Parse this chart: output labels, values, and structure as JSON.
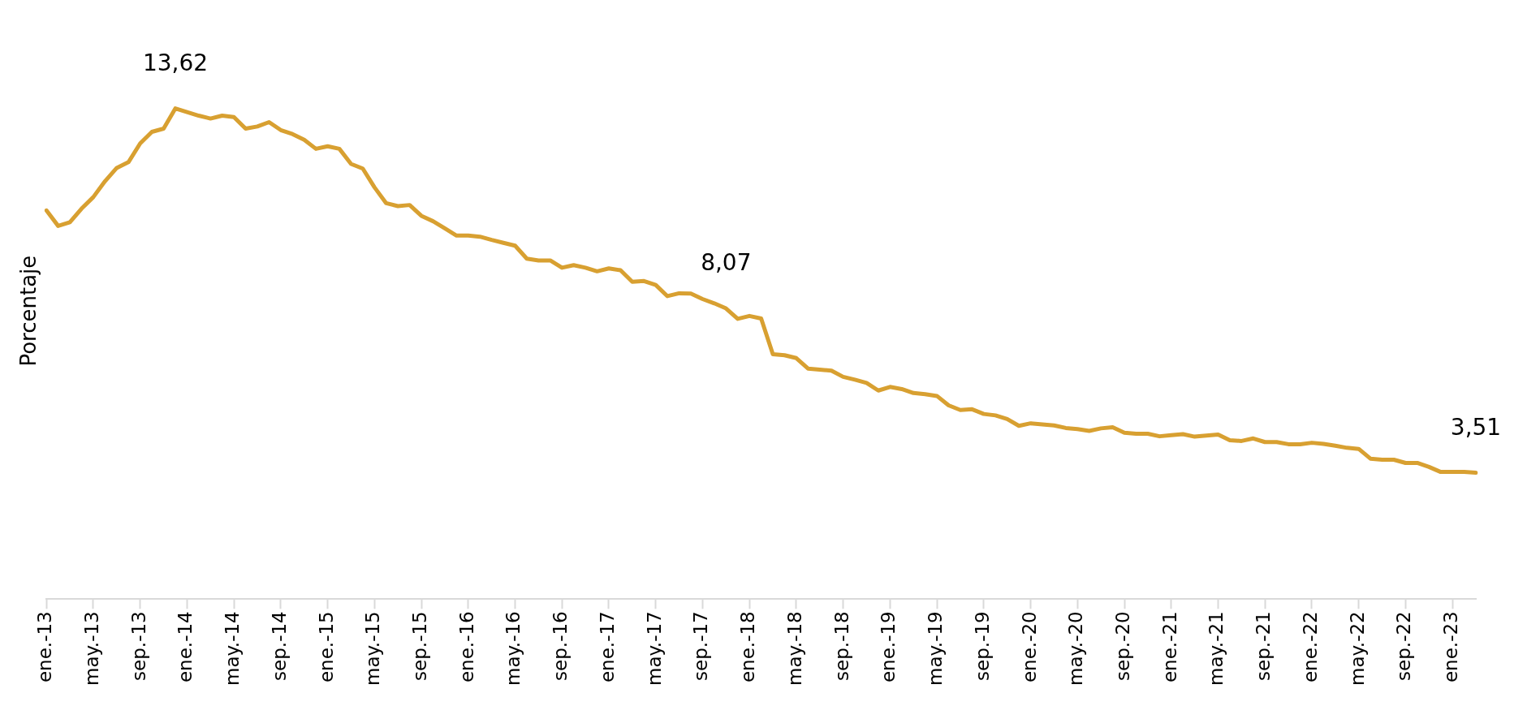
{
  "chart_data": {
    "type": "line",
    "ylabel": "Porcentaje",
    "categories": [
      "ene.-13",
      null,
      null,
      null,
      "may.-13",
      null,
      null,
      null,
      "sep.-13",
      null,
      null,
      null,
      "ene.-14",
      null,
      null,
      null,
      "may.-14",
      null,
      null,
      null,
      "sep.-14",
      null,
      null,
      null,
      "ene.-15",
      null,
      null,
      null,
      "may.-15",
      null,
      null,
      null,
      "sep.-15",
      null,
      null,
      null,
      "ene.-16",
      null,
      null,
      null,
      "may.-16",
      null,
      null,
      null,
      "sep.-16",
      null,
      null,
      null,
      "ene.-17",
      null,
      null,
      null,
      "may.-17",
      null,
      null,
      null,
      "sep.-17",
      null,
      null,
      null,
      "ene.-18",
      null,
      null,
      null,
      "may.-18",
      null,
      null,
      null,
      "sep.-18",
      null,
      null,
      null,
      "ene.-19",
      null,
      null,
      null,
      "may.-19",
      null,
      null,
      null,
      "sep.-19",
      null,
      null,
      null,
      "ene.-20",
      null,
      null,
      null,
      "may.-20",
      null,
      null,
      null,
      "sep.-20",
      null,
      null,
      null,
      "ene.-21",
      null,
      null,
      null,
      "may.-21",
      null,
      null,
      null,
      "sep.-21",
      null,
      null,
      null,
      "ene.-22",
      null,
      null,
      null,
      "may.-22",
      null,
      null,
      null,
      "sep.-22",
      null,
      null,
      null,
      "ene.-23",
      null,
      null
    ],
    "series": [
      {
        "color": "#d8a031",
        "values": [
          10.79,
          10.36,
          10.46,
          10.84,
          11.16,
          11.6,
          11.97,
          12.13,
          12.65,
          12.97,
          13.06,
          13.62,
          13.52,
          13.42,
          13.34,
          13.42,
          13.38,
          13.06,
          13.12,
          13.24,
          13.02,
          12.91,
          12.75,
          12.5,
          12.57,
          12.5,
          12.08,
          11.95,
          11.43,
          10.99,
          10.91,
          10.94,
          10.64,
          10.49,
          10.29,
          10.09,
          10.09,
          10.06,
          9.97,
          9.89,
          9.81,
          9.45,
          9.4,
          9.4,
          9.2,
          9.27,
          9.2,
          9.1,
          9.18,
          9.13,
          8.81,
          8.83,
          8.72,
          8.41,
          8.49,
          8.48,
          8.33,
          8.21,
          8.07,
          7.78,
          7.86,
          7.79,
          6.8,
          6.77,
          6.69,
          6.4,
          6.37,
          6.34,
          6.17,
          6.09,
          6,
          5.79,
          5.89,
          5.83,
          5.72,
          5.69,
          5.64,
          5.38,
          5.25,
          5.27,
          5.14,
          5.1,
          5,
          4.81,
          4.88,
          4.85,
          4.82,
          4.75,
          4.72,
          4.67,
          4.74,
          4.77,
          4.62,
          4.59,
          4.59,
          4.52,
          4.55,
          4.58,
          4.51,
          4.54,
          4.57,
          4.41,
          4.39,
          4.46,
          4.36,
          4.36,
          4.3,
          4.3,
          4.34,
          4.31,
          4.26,
          4.2,
          4.17,
          3.9,
          3.87,
          3.87,
          3.78,
          3.78,
          3.67,
          3.53,
          3.53,
          3.53,
          3.51
        ],
        "value_labels": [
          null,
          null,
          null,
          null,
          null,
          null,
          null,
          null,
          null,
          null,
          null,
          "13,62",
          null,
          null,
          null,
          null,
          null,
          null,
          null,
          null,
          null,
          null,
          null,
          null,
          null,
          null,
          null,
          null,
          null,
          null,
          null,
          null,
          null,
          null,
          null,
          null,
          null,
          null,
          null,
          null,
          null,
          null,
          null,
          null,
          null,
          null,
          null,
          null,
          null,
          null,
          null,
          null,
          null,
          null,
          null,
          null,
          null,
          null,
          "8,07",
          null,
          null,
          null,
          null,
          null,
          null,
          null,
          null,
          null,
          null,
          null,
          null,
          null,
          null,
          null,
          null,
          null,
          null,
          null,
          null,
          null,
          null,
          null,
          null,
          null,
          null,
          null,
          null,
          null,
          null,
          null,
          null,
          null,
          null,
          null,
          null,
          null,
          null,
          null,
          null,
          null,
          null,
          null,
          null,
          null,
          null,
          null,
          null,
          null,
          null,
          null,
          null,
          null,
          null,
          null,
          null,
          null,
          null,
          null,
          null,
          null,
          null,
          null,
          "3,51"
        ]
      }
    ],
    "tick_labels": "x",
    "grid": false,
    "legend": false,
    "marker": "none",
    "line_style": "solid"
  }
}
